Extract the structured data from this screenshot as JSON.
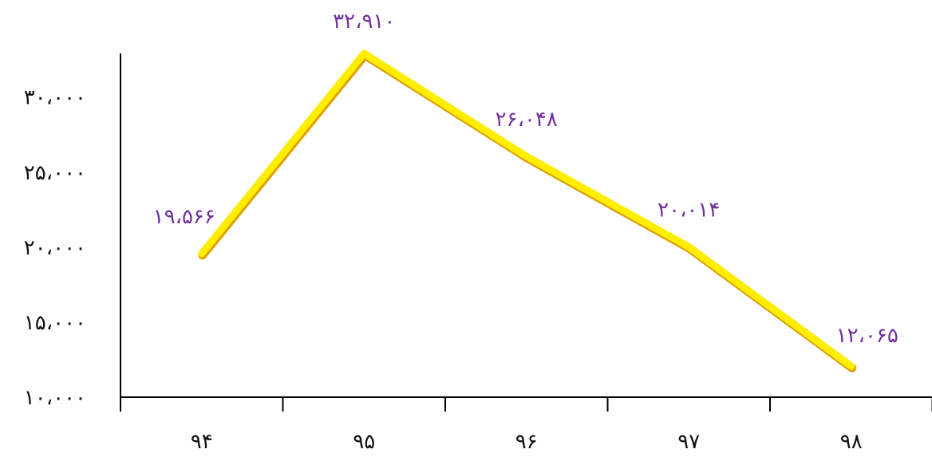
{
  "chart_data": {
    "type": "line",
    "categories": [
      "۹۴",
      "۹۵",
      "۹۶",
      "۹۷",
      "۹۸"
    ],
    "values": [
      19566,
      32910,
      26048,
      20014,
      12065
    ],
    "data_labels": [
      "۱۹،۵۶۶",
      "۳۲،۹۱۰",
      "۲۶،۰۴۸",
      "۲۰،۰۱۴",
      "۱۲،۰۶۵"
    ],
    "yticks": [
      10000,
      15000,
      20000,
      25000,
      30000
    ],
    "ytick_labels": [
      "۱۰،۰۰۰",
      "۱۵،۰۰۰",
      "۲۰،۰۰۰",
      "۲۵،۰۰۰",
      "۳۰،۰۰۰"
    ],
    "ylim": [
      10000,
      32910
    ],
    "title": "",
    "xlabel": "",
    "ylabel": "",
    "grid": false,
    "legend": "none",
    "colors": {
      "line": "#ffee00",
      "line_shadow": "#e0a000",
      "data_label": "#7030a0",
      "axis": "#000000"
    }
  }
}
